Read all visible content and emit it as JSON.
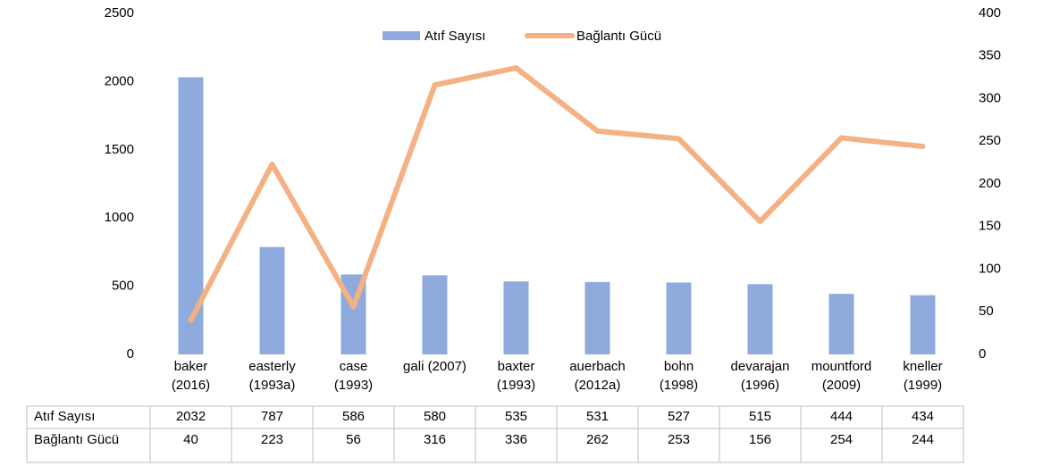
{
  "chart_data": {
    "type": "bar_line",
    "categories": [
      "baker (2016)",
      "easterly (1993a)",
      "case (1993)",
      "gali (2007)",
      "baxter (1993)",
      "auerbach (2012a)",
      "bohn (1998)",
      "devarajan (1996)",
      "mountford (2009)",
      "kneller (1999)"
    ],
    "series": [
      {
        "name": "Atıf Sayısı",
        "type": "bar",
        "color": "#8faadc",
        "values": [
          2032,
          787,
          586,
          580,
          535,
          531,
          527,
          515,
          444,
          434
        ]
      },
      {
        "name": "Bağlantı Gücü",
        "type": "line",
        "color": "#f4b183",
        "axis": "y2",
        "values": [
          40,
          223,
          56,
          316,
          336,
          262,
          253,
          156,
          254,
          244
        ]
      }
    ],
    "ylim": [
      0,
      2500
    ],
    "yticks": [
      0,
      500,
      1000,
      1500,
      2000,
      2500
    ],
    "y2lim": [
      0,
      400
    ],
    "y2ticks": [
      0,
      50,
      100,
      150,
      200,
      250,
      300,
      350,
      400
    ],
    "legend": "top",
    "grid": false,
    "data_table": true
  }
}
